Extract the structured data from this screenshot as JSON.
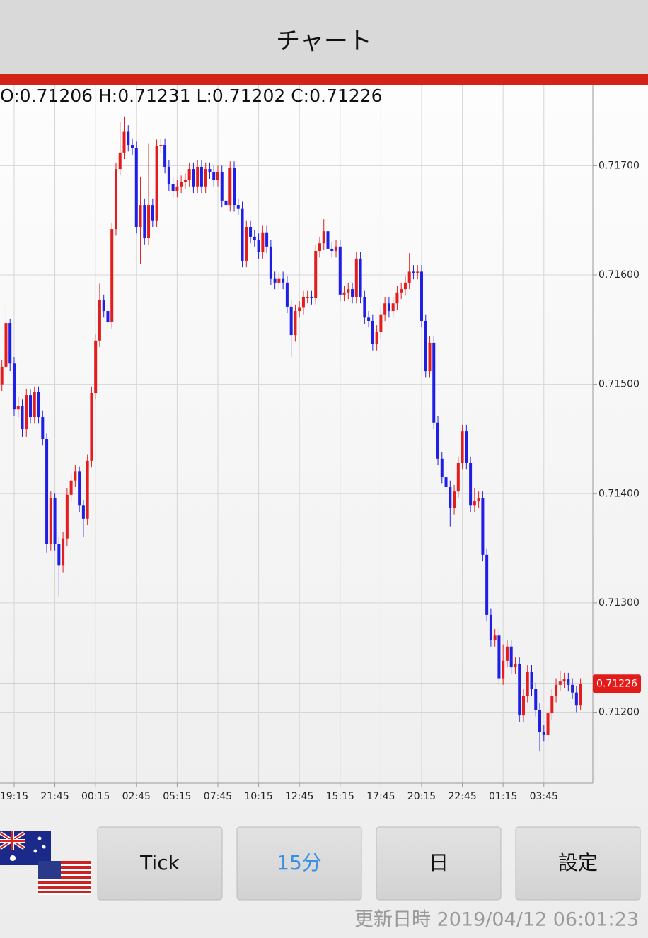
{
  "header": {
    "title": "チャート"
  },
  "buttons": [
    "Tick",
    "15分",
    "日",
    "設定"
  ],
  "footer": {
    "updated": "更新日時 2019/04/12 06:01:23"
  },
  "chart_data": {
    "type": "candlestick",
    "ohlc_text": "O:0.71206 H:0.71231 L:0.71202 C:0.71226",
    "up_color": "#e31d1d",
    "down_color": "#1e1ee6",
    "grid": true,
    "ylim": [
      0.71135,
      0.71774
    ],
    "yticks": [
      {
        "value": 0.712,
        "label": "0.71200"
      },
      {
        "value": 0.713,
        "label": "0.71300"
      },
      {
        "value": 0.714,
        "label": "0.71400"
      },
      {
        "value": 0.715,
        "label": "0.71500"
      },
      {
        "value": 0.716,
        "label": "0.71600"
      },
      {
        "value": 0.717,
        "label": "0.71700"
      }
    ],
    "last_price": {
      "value": 0.71226,
      "label": "0.71226"
    },
    "categories": [
      null,
      null,
      null,
      "19:15",
      null,
      null,
      null,
      null,
      null,
      null,
      null,
      null,
      null,
      "21:45",
      null,
      null,
      null,
      null,
      null,
      null,
      null,
      null,
      null,
      "00:15",
      null,
      null,
      null,
      null,
      null,
      null,
      null,
      null,
      null,
      "02:45",
      null,
      null,
      null,
      null,
      null,
      null,
      null,
      null,
      null,
      "05:15",
      null,
      null,
      null,
      null,
      null,
      null,
      null,
      null,
      null,
      "07:45",
      null,
      null,
      null,
      null,
      null,
      null,
      null,
      null,
      null,
      "10:15",
      null,
      null,
      null,
      null,
      null,
      null,
      null,
      null,
      null,
      "12:45",
      null,
      null,
      null,
      null,
      null,
      null,
      null,
      null,
      null,
      "15:15",
      null,
      null,
      null,
      null,
      null,
      null,
      null,
      null,
      null,
      "17:45",
      null,
      null,
      null,
      null,
      null,
      null,
      null,
      null,
      null,
      "20:15",
      null,
      null,
      null,
      null,
      null,
      null,
      null,
      null,
      null,
      "22:45",
      null,
      null,
      null,
      null,
      null,
      null,
      null,
      null,
      null,
      "01:15",
      null,
      null,
      null,
      null,
      null,
      null,
      null,
      null,
      null,
      "03:45",
      null,
      null,
      null,
      null,
      null,
      null,
      null,
      null,
      null
    ],
    "candles": [
      [
        0.715,
        0.71522,
        0.71494,
        0.71516
      ],
      [
        0.71516,
        0.71572,
        0.7151,
        0.71556
      ],
      [
        0.71556,
        0.7156,
        0.71512,
        0.71519
      ],
      [
        0.71519,
        0.71525,
        0.71471,
        0.71477
      ],
      [
        0.71477,
        0.71488,
        0.7147,
        0.7148
      ],
      [
        0.7148,
        0.71486,
        0.71452,
        0.71459
      ],
      [
        0.71459,
        0.71496,
        0.71452,
        0.7149
      ],
      [
        0.7149,
        0.71495,
        0.71464,
        0.7147
      ],
      [
        0.7147,
        0.71498,
        0.71464,
        0.71493
      ],
      [
        0.71493,
        0.71498,
        0.71464,
        0.7147
      ],
      [
        0.7147,
        0.71476,
        0.71444,
        0.7145
      ],
      [
        0.7145,
        0.71455,
        0.71346,
        0.71354
      ],
      [
        0.71354,
        0.71402,
        0.71348,
        0.71396
      ],
      [
        0.71396,
        0.714,
        0.71348,
        0.71354
      ],
      [
        0.71354,
        0.7136,
        0.71306,
        0.71334
      ],
      [
        0.71334,
        0.71365,
        0.71328,
        0.71359
      ],
      [
        0.71359,
        0.71405,
        0.71352,
        0.71399
      ],
      [
        0.71399,
        0.71418,
        0.71393,
        0.71412
      ],
      [
        0.71412,
        0.71426,
        0.71406,
        0.7142
      ],
      [
        0.7142,
        0.71425,
        0.71383,
        0.71389
      ],
      [
        0.71389,
        0.71394,
        0.7136,
        0.71377
      ],
      [
        0.71377,
        0.71436,
        0.71371,
        0.7143
      ],
      [
        0.7143,
        0.71498,
        0.71424,
        0.71492
      ],
      [
        0.71492,
        0.71546,
        0.71486,
        0.7154
      ],
      [
        0.7154,
        0.71592,
        0.71534,
        0.71577
      ],
      [
        0.71577,
        0.71582,
        0.71561,
        0.71567
      ],
      [
        0.71567,
        0.71573,
        0.71551,
        0.71557
      ],
      [
        0.71557,
        0.71648,
        0.71551,
        0.71642
      ],
      [
        0.71642,
        0.71703,
        0.71636,
        0.71697
      ],
      [
        0.71697,
        0.7174,
        0.71691,
        0.71712
      ],
      [
        0.71712,
        0.71745,
        0.71706,
        0.71731
      ],
      [
        0.71731,
        0.71737,
        0.71713,
        0.71719
      ],
      [
        0.71719,
        0.71725,
        0.7171,
        0.71716
      ],
      [
        0.71716,
        0.71722,
        0.71638,
        0.71644
      ],
      [
        0.71644,
        0.7169,
        0.7161,
        0.71664
      ],
      [
        0.71664,
        0.7167,
        0.71628,
        0.71634
      ],
      [
        0.71634,
        0.7172,
        0.71628,
        0.71664
      ],
      [
        0.71664,
        0.7167,
        0.71644,
        0.7165
      ],
      [
        0.7165,
        0.71724,
        0.71644,
        0.71718
      ],
      [
        0.71718,
        0.71725,
        0.71712,
        0.71719
      ],
      [
        0.71719,
        0.71725,
        0.71693,
        0.71699
      ],
      [
        0.71699,
        0.71705,
        0.71677,
        0.71683
      ],
      [
        0.71683,
        0.71689,
        0.71671,
        0.71677
      ],
      [
        0.71677,
        0.71687,
        0.71671,
        0.71681
      ],
      [
        0.71681,
        0.71691,
        0.71675,
        0.71685
      ],
      [
        0.71685,
        0.71693,
        0.71679,
        0.71687
      ],
      [
        0.71687,
        0.71703,
        0.71681,
        0.71697
      ],
      [
        0.71697,
        0.71703,
        0.71675,
        0.71681
      ],
      [
        0.71681,
        0.71705,
        0.71675,
        0.71699
      ],
      [
        0.71699,
        0.71705,
        0.71675,
        0.71681
      ],
      [
        0.71681,
        0.71703,
        0.71675,
        0.71697
      ],
      [
        0.71697,
        0.71703,
        0.71688,
        0.71694
      ],
      [
        0.71694,
        0.717,
        0.71681,
        0.71687
      ],
      [
        0.71687,
        0.717,
        0.71681,
        0.71694
      ],
      [
        0.71694,
        0.717,
        0.71662,
        0.71668
      ],
      [
        0.71668,
        0.71674,
        0.71658,
        0.71664
      ],
      [
        0.71664,
        0.71704,
        0.71658,
        0.71698
      ],
      [
        0.71698,
        0.71704,
        0.71658,
        0.71664
      ],
      [
        0.71664,
        0.7167,
        0.71655,
        0.71661
      ],
      [
        0.71661,
        0.71667,
        0.71607,
        0.71613
      ],
      [
        0.71613,
        0.7165,
        0.71607,
        0.71644
      ],
      [
        0.71644,
        0.7165,
        0.71629,
        0.71635
      ],
      [
        0.71635,
        0.71641,
        0.71626,
        0.71632
      ],
      [
        0.71632,
        0.71638,
        0.71615,
        0.71621
      ],
      [
        0.71621,
        0.71645,
        0.71615,
        0.71639
      ],
      [
        0.71639,
        0.71645,
        0.7162,
        0.71626
      ],
      [
        0.71626,
        0.71632,
        0.71591,
        0.71597
      ],
      [
        0.71597,
        0.71603,
        0.71587,
        0.71593
      ],
      [
        0.71593,
        0.71603,
        0.71587,
        0.71597
      ],
      [
        0.71597,
        0.71603,
        0.71587,
        0.71593
      ],
      [
        0.71593,
        0.71599,
        0.71565,
        0.71571
      ],
      [
        0.71571,
        0.71577,
        0.71525,
        0.71545
      ],
      [
        0.71545,
        0.71573,
        0.71539,
        0.71567
      ],
      [
        0.71567,
        0.71576,
        0.71561,
        0.7157
      ],
      [
        0.7157,
        0.71586,
        0.71564,
        0.7158
      ],
      [
        0.7158,
        0.71586,
        0.71574,
        0.7158
      ],
      [
        0.7158,
        0.71586,
        0.71573,
        0.71579
      ],
      [
        0.71579,
        0.71628,
        0.71573,
        0.71622
      ],
      [
        0.71622,
        0.71635,
        0.71616,
        0.71629
      ],
      [
        0.71629,
        0.71651,
        0.71623,
        0.7164
      ],
      [
        0.7164,
        0.71646,
        0.71618,
        0.71624
      ],
      [
        0.71624,
        0.7163,
        0.71616,
        0.71622
      ],
      [
        0.71622,
        0.71632,
        0.71616,
        0.71626
      ],
      [
        0.71626,
        0.71632,
        0.71576,
        0.71582
      ],
      [
        0.71582,
        0.7159,
        0.71576,
        0.71584
      ],
      [
        0.71584,
        0.71593,
        0.71578,
        0.71587
      ],
      [
        0.71587,
        0.71593,
        0.71574,
        0.7158
      ],
      [
        0.7158,
        0.71621,
        0.71574,
        0.71615
      ],
      [
        0.71615,
        0.71621,
        0.71574,
        0.7158
      ],
      [
        0.7158,
        0.71586,
        0.71555,
        0.71561
      ],
      [
        0.71561,
        0.71567,
        0.71552,
        0.71558
      ],
      [
        0.71558,
        0.71564,
        0.71531,
        0.71537
      ],
      [
        0.71537,
        0.71554,
        0.71531,
        0.71548
      ],
      [
        0.71548,
        0.7157,
        0.71542,
        0.71564
      ],
      [
        0.71564,
        0.7158,
        0.71558,
        0.71574
      ],
      [
        0.71574,
        0.7158,
        0.71561,
        0.71567
      ],
      [
        0.71567,
        0.7158,
        0.71561,
        0.71574
      ],
      [
        0.71574,
        0.7159,
        0.71568,
        0.71584
      ],
      [
        0.71584,
        0.71593,
        0.71578,
        0.71587
      ],
      [
        0.71587,
        0.71599,
        0.71581,
        0.71593
      ],
      [
        0.71593,
        0.7162,
        0.71587,
        0.71603
      ],
      [
        0.71603,
        0.71609,
        0.71596,
        0.71602
      ],
      [
        0.71602,
        0.71609,
        0.71596,
        0.71603
      ],
      [
        0.71603,
        0.71609,
        0.71552,
        0.71558
      ],
      [
        0.71558,
        0.71564,
        0.71506,
        0.71512
      ],
      [
        0.71512,
        0.71544,
        0.71506,
        0.71538
      ],
      [
        0.71538,
        0.71544,
        0.71459,
        0.71465
      ],
      [
        0.71465,
        0.71471,
        0.71426,
        0.71432
      ],
      [
        0.71432,
        0.71438,
        0.71409,
        0.71415
      ],
      [
        0.71415,
        0.71421,
        0.714,
        0.71406
      ],
      [
        0.71406,
        0.71412,
        0.7137,
        0.71387
      ],
      [
        0.71387,
        0.71408,
        0.71381,
        0.71402
      ],
      [
        0.71402,
        0.71434,
        0.71396,
        0.71428
      ],
      [
        0.71428,
        0.71463,
        0.71422,
        0.71457
      ],
      [
        0.71457,
        0.71463,
        0.71422,
        0.71428
      ],
      [
        0.71428,
        0.71434,
        0.71383,
        0.71389
      ],
      [
        0.71389,
        0.71405,
        0.71383,
        0.71393
      ],
      [
        0.71393,
        0.71402,
        0.71387,
        0.71396
      ],
      [
        0.71396,
        0.71402,
        0.71338,
        0.71344
      ],
      [
        0.71344,
        0.7135,
        0.71283,
        0.71289
      ],
      [
        0.71289,
        0.71295,
        0.7126,
        0.71266
      ],
      [
        0.71266,
        0.71276,
        0.7126,
        0.7127
      ],
      [
        0.7127,
        0.71276,
        0.71225,
        0.71231
      ],
      [
        0.71231,
        0.71262,
        0.71225,
        0.71247
      ],
      [
        0.71247,
        0.71266,
        0.71241,
        0.7126
      ],
      [
        0.7126,
        0.71266,
        0.71235,
        0.71241
      ],
      [
        0.71241,
        0.7125,
        0.71235,
        0.71244
      ],
      [
        0.71244,
        0.7125,
        0.71191,
        0.71197
      ],
      [
        0.71197,
        0.71221,
        0.71191,
        0.71215
      ],
      [
        0.71215,
        0.71243,
        0.71209,
        0.71237
      ],
      [
        0.71237,
        0.71243,
        0.71215,
        0.71221
      ],
      [
        0.71221,
        0.71227,
        0.71196,
        0.71202
      ],
      [
        0.71202,
        0.71208,
        0.71164,
        0.71182
      ],
      [
        0.71182,
        0.71188,
        0.71173,
        0.71179
      ],
      [
        0.71179,
        0.71205,
        0.71173,
        0.71199
      ],
      [
        0.71199,
        0.71221,
        0.71193,
        0.71215
      ],
      [
        0.71215,
        0.71231,
        0.71209,
        0.71225
      ],
      [
        0.71225,
        0.71238,
        0.71219,
        0.71228
      ],
      [
        0.71228,
        0.71236,
        0.71222,
        0.7123
      ],
      [
        0.7123,
        0.71236,
        0.71219,
        0.71225
      ],
      [
        0.71225,
        0.71231,
        0.71212,
        0.71218
      ],
      [
        0.71218,
        0.71224,
        0.712,
        0.71206
      ],
      [
        0.71206,
        0.71231,
        0.71202,
        0.71226
      ]
    ]
  }
}
